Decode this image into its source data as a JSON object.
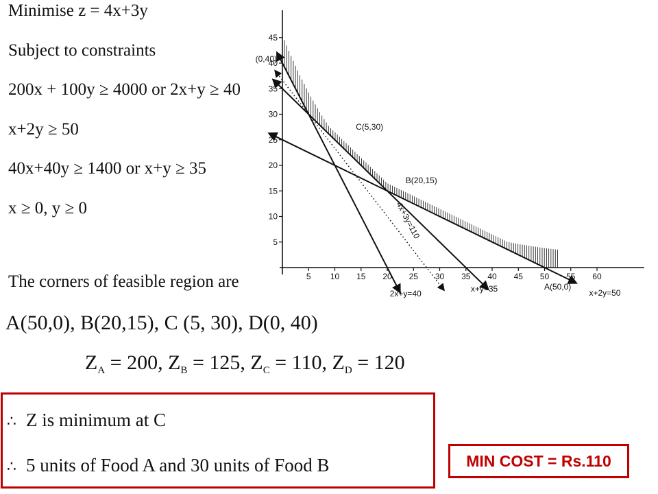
{
  "problem": {
    "objective": "Minimise z = 4x+3y",
    "subject": "Subject to constraints",
    "c1": "200x + 100y ≥ 4000 or 2x+y ≥ 40",
    "c2": "x+2y ≥ 50",
    "c3": "40x+40y ≥ 1400 or x+y ≥ 35",
    "c4": "x ≥ 0, y ≥ 0"
  },
  "corners_heading": "The corners of feasible region are",
  "corners": "A(50,0), B(20,15), C (5, 30), D(0, 40)",
  "z_values": [
    {
      "label": "Z",
      "sub": "A",
      "value": " = 200, "
    },
    {
      "label": "Z",
      "sub": "B",
      "value": " = 125, "
    },
    {
      "label": "Z",
      "sub": "C",
      "value": " = 110, "
    },
    {
      "label": "Z",
      "sub": "D",
      "value": " = 120"
    }
  ],
  "conclusion": {
    "symbol": "∴",
    "line1": "Z is minimum at C",
    "line2": "5 units of Food A and 30 units of Food B"
  },
  "min_cost": "MIN COST = Rs.110",
  "colors": {
    "accent": "#c00000",
    "ink": "#111111"
  },
  "chart_data": {
    "type": "line",
    "title": "",
    "xlabel": "",
    "ylabel": "",
    "xlim": [
      0,
      65
    ],
    "ylim": [
      0,
      47
    ],
    "x_ticks": [
      5,
      10,
      15,
      20,
      25,
      30,
      35,
      40,
      45,
      50,
      55,
      60
    ],
    "y_ticks": [
      5,
      10,
      15,
      20,
      25,
      30,
      35,
      40,
      45
    ],
    "lines": [
      {
        "name": "2x+y=40",
        "from": [
          0,
          40
        ],
        "to": [
          20,
          0
        ]
      },
      {
        "name": "x+y=35",
        "from": [
          0,
          35
        ],
        "to": [
          35,
          0
        ]
      },
      {
        "name": "x+2y=50",
        "from": [
          0,
          25
        ],
        "to": [
          50,
          0
        ]
      },
      {
        "name": "4x+3y=110",
        "from": [
          0,
          36.67
        ],
        "to": [
          27.5,
          0
        ]
      }
    ],
    "points": [
      {
        "label": "(0,40)",
        "x": 0,
        "y": 40
      },
      {
        "label": "C(5,30)",
        "x": 5,
        "y": 30
      },
      {
        "label": "B(20,15)",
        "x": 20,
        "y": 15
      },
      {
        "label": "A(50,0)",
        "x": 50,
        "y": 0
      }
    ],
    "feasible_region": "shaded above boundary D(0,40) - C(5,30) - B(20,15) - A(50,0)"
  }
}
